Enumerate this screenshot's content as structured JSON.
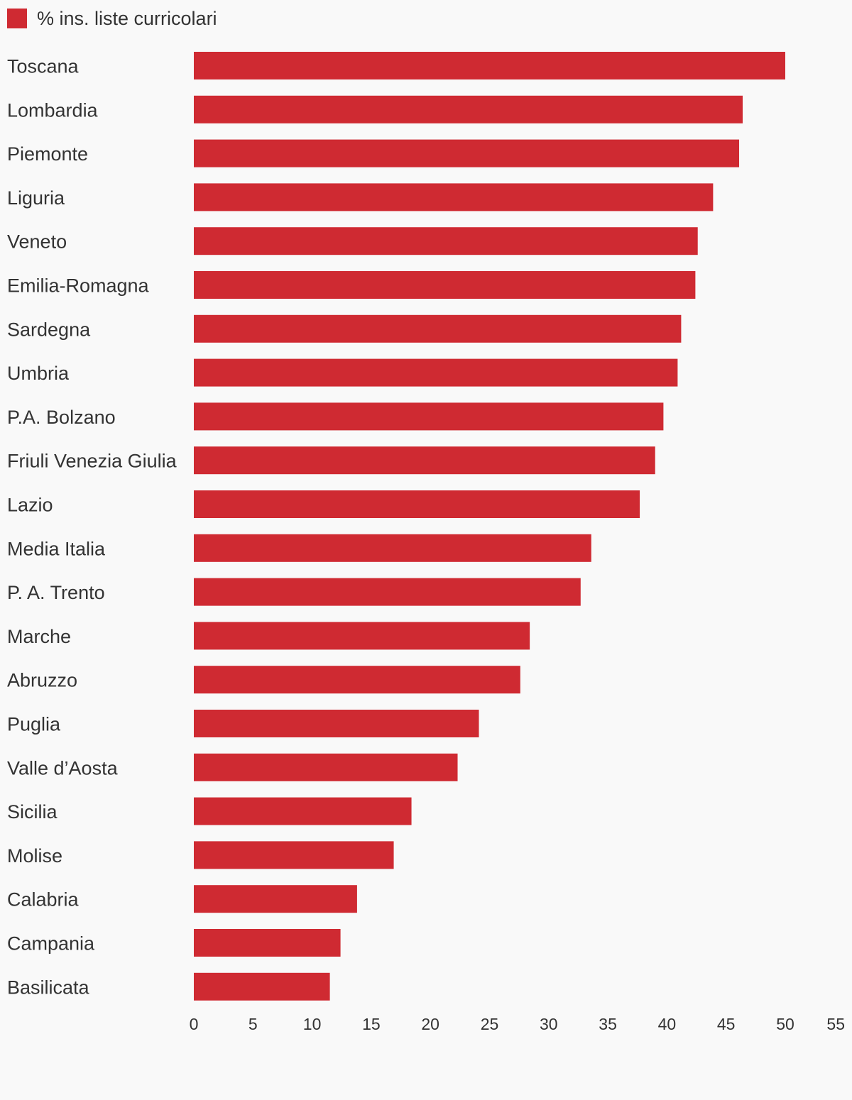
{
  "chart_data": {
    "type": "bar",
    "orientation": "horizontal",
    "series": [
      {
        "name": "% ins. liste curricolari",
        "color": "#cf2a32",
        "values": [
          50.0,
          46.4,
          46.1,
          43.9,
          42.6,
          42.4,
          41.2,
          40.9,
          39.7,
          39.0,
          37.7,
          33.6,
          32.7,
          28.4,
          27.6,
          24.1,
          22.3,
          18.4,
          16.9,
          13.8,
          12.4,
          11.5
        ]
      }
    ],
    "categories": [
      "Toscana",
      "Lombardia",
      "Piemonte",
      "Liguria",
      "Veneto",
      "Emilia-Romagna",
      "Sardegna",
      "Umbria",
      "P.A. Bolzano",
      "Friuli Venezia Giulia",
      "Lazio",
      "Media Italia",
      "P. A. Trento",
      "Marche",
      "Abruzzo",
      "Puglia",
      "Valle d’Aosta",
      "Sicilia",
      "Molise",
      "Calabria",
      "Campania",
      "Basilicata"
    ],
    "xlim": [
      0,
      55
    ],
    "xticks": [
      "0",
      "5",
      "10",
      "15",
      "20",
      "25",
      "30",
      "35",
      "40",
      "45",
      "50",
      "55"
    ],
    "grid": false,
    "legend_position": "top-left",
    "title": "",
    "xlabel": "",
    "ylabel": ""
  }
}
